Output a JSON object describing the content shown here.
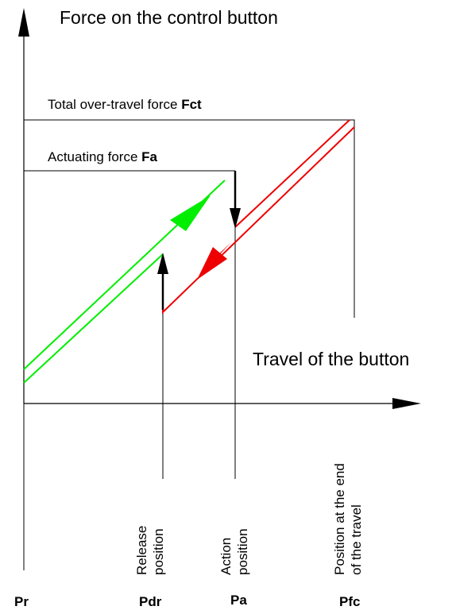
{
  "y_axis_title": "Force on the control button",
  "x_axis_title": "Travel of the button",
  "levels": {
    "over_travel": {
      "label": "Total over-travel force ",
      "symbol": "Fct"
    },
    "actuating": {
      "label": "Actuating force ",
      "symbol": "Fa"
    }
  },
  "positions": {
    "release": {
      "line1": "Release",
      "line2": "position",
      "code": "Pdr"
    },
    "action": {
      "line1": "Action",
      "line2": "position",
      "code": "Pa"
    },
    "end": {
      "line1": "Position at the end",
      "line2": "of the travel",
      "code": "Pfc"
    },
    "rest": {
      "code": "Pr"
    }
  },
  "colors": {
    "press_curve": "#00ee00",
    "release_curve": "#ee0000",
    "axes": "#000000",
    "guide_lines": "#000000"
  }
}
